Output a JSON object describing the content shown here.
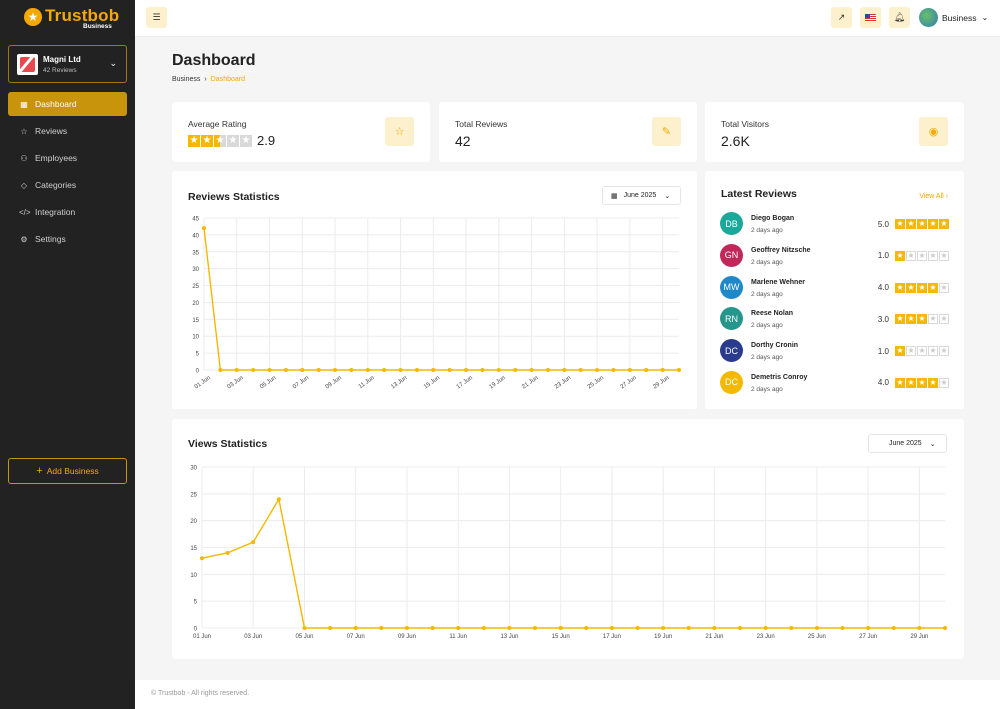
{
  "brand": {
    "name": "Trustbob",
    "sub": "Business"
  },
  "business": {
    "name": "Magni Ltd",
    "reviews": "42 Reviews"
  },
  "nav": [
    {
      "label": "Dashboard",
      "icon": "grid-icon",
      "active": true
    },
    {
      "label": "Reviews",
      "icon": "star-icon"
    },
    {
      "label": "Employees",
      "icon": "users-icon"
    },
    {
      "label": "Categories",
      "icon": "tag-icon"
    },
    {
      "label": "Integration",
      "icon": "code-icon"
    },
    {
      "label": "Settings",
      "icon": "gear-icon"
    }
  ],
  "add_business": "Add Business",
  "header": {
    "user_label": "Business"
  },
  "page": {
    "title": "Dashboard",
    "breadcrumb_root": "Business",
    "breadcrumb_current": "Dashboard"
  },
  "stats": {
    "avg_label": "Average Rating",
    "avg_value": "2.9",
    "avg_stars": 2.9,
    "total_label": "Total Reviews",
    "total_value": "42",
    "visitors_label": "Total Visitors",
    "visitors_value": "2.6K"
  },
  "reviews_chart_title": "Reviews Statistics",
  "views_chart_title": "Views Statistics",
  "month_label": "June 2025",
  "latest": {
    "title": "Latest Reviews",
    "view_all": "View All",
    "items": [
      {
        "initials": "DB",
        "name": "Diego Bogan",
        "time": "2 days ago",
        "score": "5.0",
        "stars": 5,
        "color": "#1aa89a"
      },
      {
        "initials": "GN",
        "name": "Geoffrey Nitzsche",
        "time": "2 days ago",
        "score": "1.0",
        "stars": 1,
        "color": "#c0285a"
      },
      {
        "initials": "MW",
        "name": "Marlene Wehner",
        "time": "2 days ago",
        "score": "4.0",
        "stars": 4,
        "color": "#1e88c8"
      },
      {
        "initials": "RN",
        "name": "Reese Nolan",
        "time": "2 days ago",
        "score": "3.0",
        "stars": 3,
        "color": "#26968c"
      },
      {
        "initials": "DC",
        "name": "Dorthy Cronin",
        "time": "2 days ago",
        "score": "1.0",
        "stars": 1,
        "color": "#2a3a8c"
      },
      {
        "initials": "DC",
        "name": "Demetris Conroy",
        "time": "2 days ago",
        "score": "4.0",
        "stars": 4,
        "color": "#f5b800"
      }
    ]
  },
  "footer": "© Trustbob - All rights reserved.",
  "colors": {
    "accent": "#f5a800",
    "sidebar": "#222222"
  },
  "chart_data": [
    {
      "type": "line",
      "title": "Reviews Statistics",
      "x": [
        "01 Jun",
        "02 Jun",
        "03 Jun",
        "04 Jun",
        "05 Jun",
        "06 Jun",
        "07 Jun",
        "08 Jun",
        "09 Jun",
        "10 Jun",
        "11 Jun",
        "12 Jun",
        "13 Jun",
        "14 Jun",
        "15 Jun",
        "16 Jun",
        "17 Jun",
        "18 Jun",
        "19 Jun",
        "20 Jun",
        "21 Jun",
        "22 Jun",
        "23 Jun",
        "24 Jun",
        "25 Jun",
        "26 Jun",
        "27 Jun",
        "28 Jun",
        "29 Jun",
        "30 Jun"
      ],
      "x_tick_labels": [
        "01 Jun",
        "03 Jun",
        "05 Jun",
        "07 Jun",
        "09 Jun",
        "11 Jun",
        "13 Jun",
        "15 Jun",
        "17 Jun",
        "19 Jun",
        "21 Jun",
        "23 Jun",
        "25 Jun",
        "27 Jun",
        "29 Jun"
      ],
      "values": [
        42,
        0,
        0,
        0,
        0,
        0,
        0,
        0,
        0,
        0,
        0,
        0,
        0,
        0,
        0,
        0,
        0,
        0,
        0,
        0,
        0,
        0,
        0,
        0,
        0,
        0,
        0,
        0,
        0,
        0
      ],
      "ylim": [
        0,
        45
      ],
      "yticks": [
        0,
        5,
        10,
        15,
        20,
        25,
        30,
        35,
        40,
        45
      ],
      "grid": true
    },
    {
      "type": "line",
      "title": "Views Statistics",
      "x": [
        "01 Jun",
        "02 Jun",
        "03 Jun",
        "04 Jun",
        "05 Jun",
        "06 Jun",
        "07 Jun",
        "08 Jun",
        "09 Jun",
        "10 Jun",
        "11 Jun",
        "12 Jun",
        "13 Jun",
        "14 Jun",
        "15 Jun",
        "16 Jun",
        "17 Jun",
        "18 Jun",
        "19 Jun",
        "20 Jun",
        "21 Jun",
        "22 Jun",
        "23 Jun",
        "24 Jun",
        "25 Jun",
        "26 Jun",
        "27 Jun",
        "28 Jun",
        "29 Jun",
        "30 Jun"
      ],
      "x_tick_labels": [
        "01 Jun",
        "03 Jun",
        "05 Jun",
        "07 Jun",
        "09 Jun",
        "11 Jun",
        "13 Jun",
        "15 Jun",
        "17 Jun",
        "19 Jun",
        "21 Jun",
        "23 Jun",
        "25 Jun",
        "27 Jun",
        "29 Jun"
      ],
      "values": [
        13,
        14,
        16,
        24,
        0,
        0,
        0,
        0,
        0,
        0,
        0,
        0,
        0,
        0,
        0,
        0,
        0,
        0,
        0,
        0,
        0,
        0,
        0,
        0,
        0,
        0,
        0,
        0,
        0,
        0
      ],
      "ylim": [
        0,
        30
      ],
      "yticks": [
        0,
        5,
        10,
        15,
        20,
        25,
        30
      ],
      "grid": true
    }
  ]
}
